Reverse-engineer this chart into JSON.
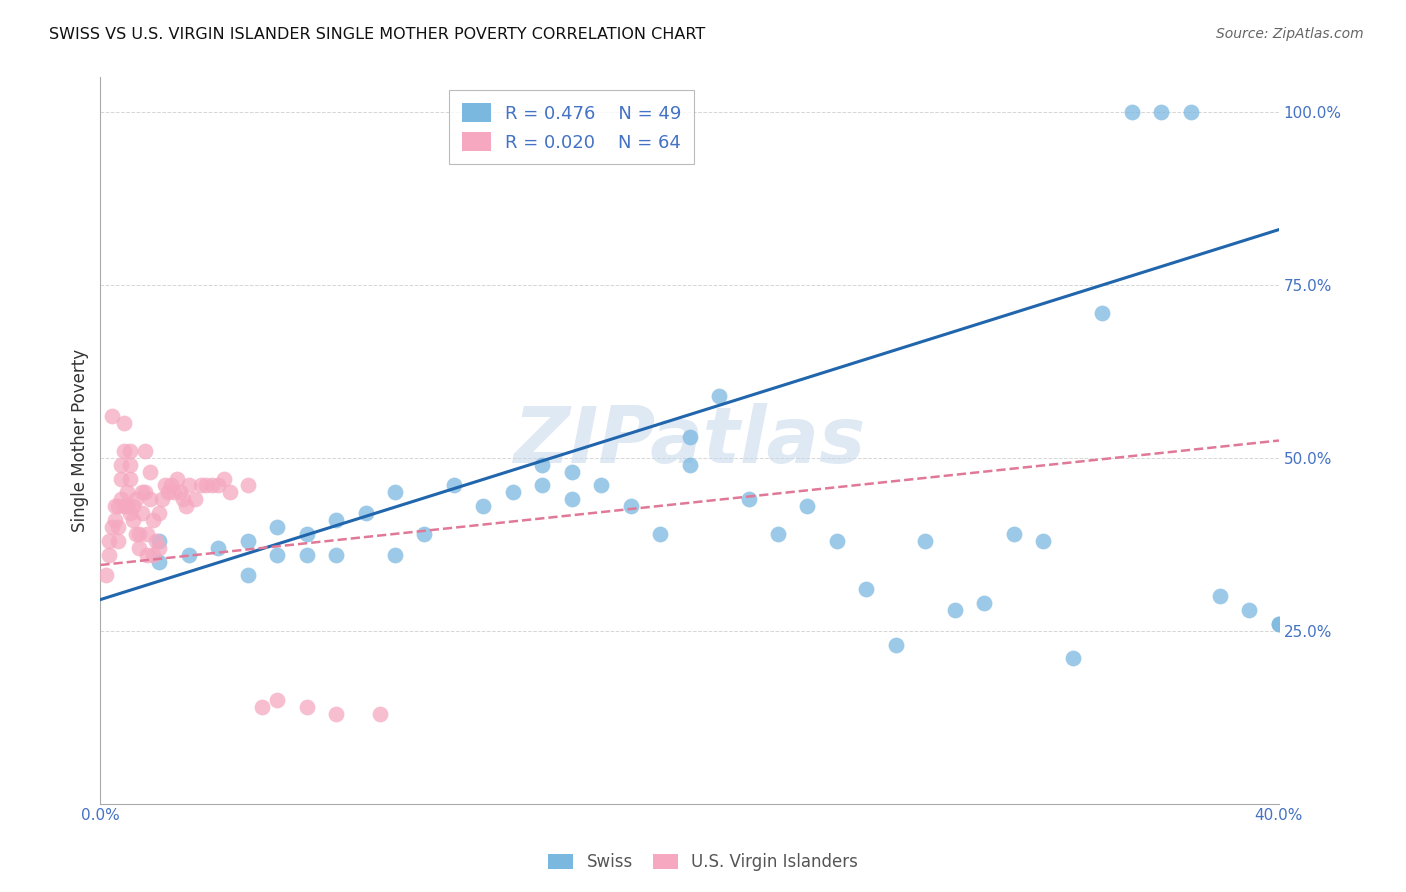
{
  "title": "SWISS VS U.S. VIRGIN ISLANDER SINGLE MOTHER POVERTY CORRELATION CHART",
  "source": "Source: ZipAtlas.com",
  "ylabel": "Single Mother Poverty",
  "xlim": [
    0.0,
    0.4
  ],
  "ylim": [
    0.0,
    1.05
  ],
  "yticks": [
    0.0,
    0.25,
    0.5,
    0.75,
    1.0
  ],
  "ytick_labels": [
    "",
    "25.0%",
    "50.0%",
    "75.0%",
    "100.0%"
  ],
  "xticks": [
    0.0,
    0.05,
    0.1,
    0.15,
    0.2,
    0.25,
    0.3,
    0.35,
    0.4
  ],
  "xtick_labels": [
    "0.0%",
    "",
    "",
    "",
    "",
    "",
    "",
    "",
    "40.0%"
  ],
  "legend_blue_R": "R = 0.476",
  "legend_blue_N": "N = 49",
  "legend_pink_R": "R = 0.020",
  "legend_pink_N": "N = 64",
  "blue_color": "#7bb8e0",
  "pink_color": "#f5a8c0",
  "blue_line_color": "#2166ac",
  "pink_line_color": "#e07898",
  "watermark": "ZIPatlas",
  "blue_line_x0": 0.0,
  "blue_line_y0": 0.295,
  "blue_line_x1": 0.4,
  "blue_line_y1": 0.83,
  "pink_line_x0": 0.0,
  "pink_line_y0": 0.345,
  "pink_line_x1": 0.4,
  "pink_line_y1": 0.525,
  "blue_scatter_x": [
    0.02,
    0.02,
    0.03,
    0.04,
    0.05,
    0.05,
    0.06,
    0.06,
    0.07,
    0.07,
    0.08,
    0.08,
    0.09,
    0.1,
    0.1,
    0.11,
    0.12,
    0.13,
    0.14,
    0.15,
    0.15,
    0.16,
    0.16,
    0.17,
    0.18,
    0.19,
    0.2,
    0.2,
    0.21,
    0.22,
    0.23,
    0.24,
    0.25,
    0.26,
    0.27,
    0.28,
    0.29,
    0.3,
    0.31,
    0.32,
    0.33,
    0.34,
    0.35,
    0.36,
    0.37,
    0.38,
    0.39,
    0.4,
    0.4
  ],
  "blue_scatter_y": [
    0.38,
    0.35,
    0.36,
    0.37,
    0.33,
    0.38,
    0.36,
    0.4,
    0.36,
    0.39,
    0.36,
    0.41,
    0.42,
    0.36,
    0.45,
    0.39,
    0.46,
    0.43,
    0.45,
    0.46,
    0.49,
    0.44,
    0.48,
    0.46,
    0.43,
    0.39,
    0.49,
    0.53,
    0.59,
    0.44,
    0.39,
    0.43,
    0.38,
    0.31,
    0.23,
    0.38,
    0.28,
    0.29,
    0.39,
    0.38,
    0.21,
    0.71,
    1.0,
    1.0,
    1.0,
    0.3,
    0.28,
    0.26,
    0.26
  ],
  "pink_scatter_x": [
    0.002,
    0.003,
    0.003,
    0.004,
    0.004,
    0.005,
    0.005,
    0.006,
    0.006,
    0.006,
    0.007,
    0.007,
    0.007,
    0.008,
    0.008,
    0.008,
    0.009,
    0.009,
    0.01,
    0.01,
    0.01,
    0.01,
    0.011,
    0.011,
    0.012,
    0.012,
    0.013,
    0.013,
    0.014,
    0.014,
    0.015,
    0.015,
    0.016,
    0.016,
    0.017,
    0.017,
    0.018,
    0.018,
    0.019,
    0.02,
    0.02,
    0.021,
    0.022,
    0.023,
    0.024,
    0.025,
    0.026,
    0.027,
    0.028,
    0.029,
    0.03,
    0.032,
    0.034,
    0.036,
    0.038,
    0.04,
    0.042,
    0.044,
    0.05,
    0.055,
    0.06,
    0.07,
    0.08,
    0.095
  ],
  "pink_scatter_y": [
    0.33,
    0.36,
    0.38,
    0.4,
    0.56,
    0.41,
    0.43,
    0.38,
    0.4,
    0.43,
    0.44,
    0.47,
    0.49,
    0.51,
    0.55,
    0.43,
    0.45,
    0.43,
    0.47,
    0.49,
    0.51,
    0.42,
    0.41,
    0.43,
    0.39,
    0.44,
    0.37,
    0.39,
    0.42,
    0.45,
    0.45,
    0.51,
    0.36,
    0.39,
    0.44,
    0.48,
    0.36,
    0.41,
    0.38,
    0.37,
    0.42,
    0.44,
    0.46,
    0.45,
    0.46,
    0.45,
    0.47,
    0.45,
    0.44,
    0.43,
    0.46,
    0.44,
    0.46,
    0.46,
    0.46,
    0.46,
    0.47,
    0.45,
    0.46,
    0.14,
    0.15,
    0.14,
    0.13,
    0.13
  ]
}
